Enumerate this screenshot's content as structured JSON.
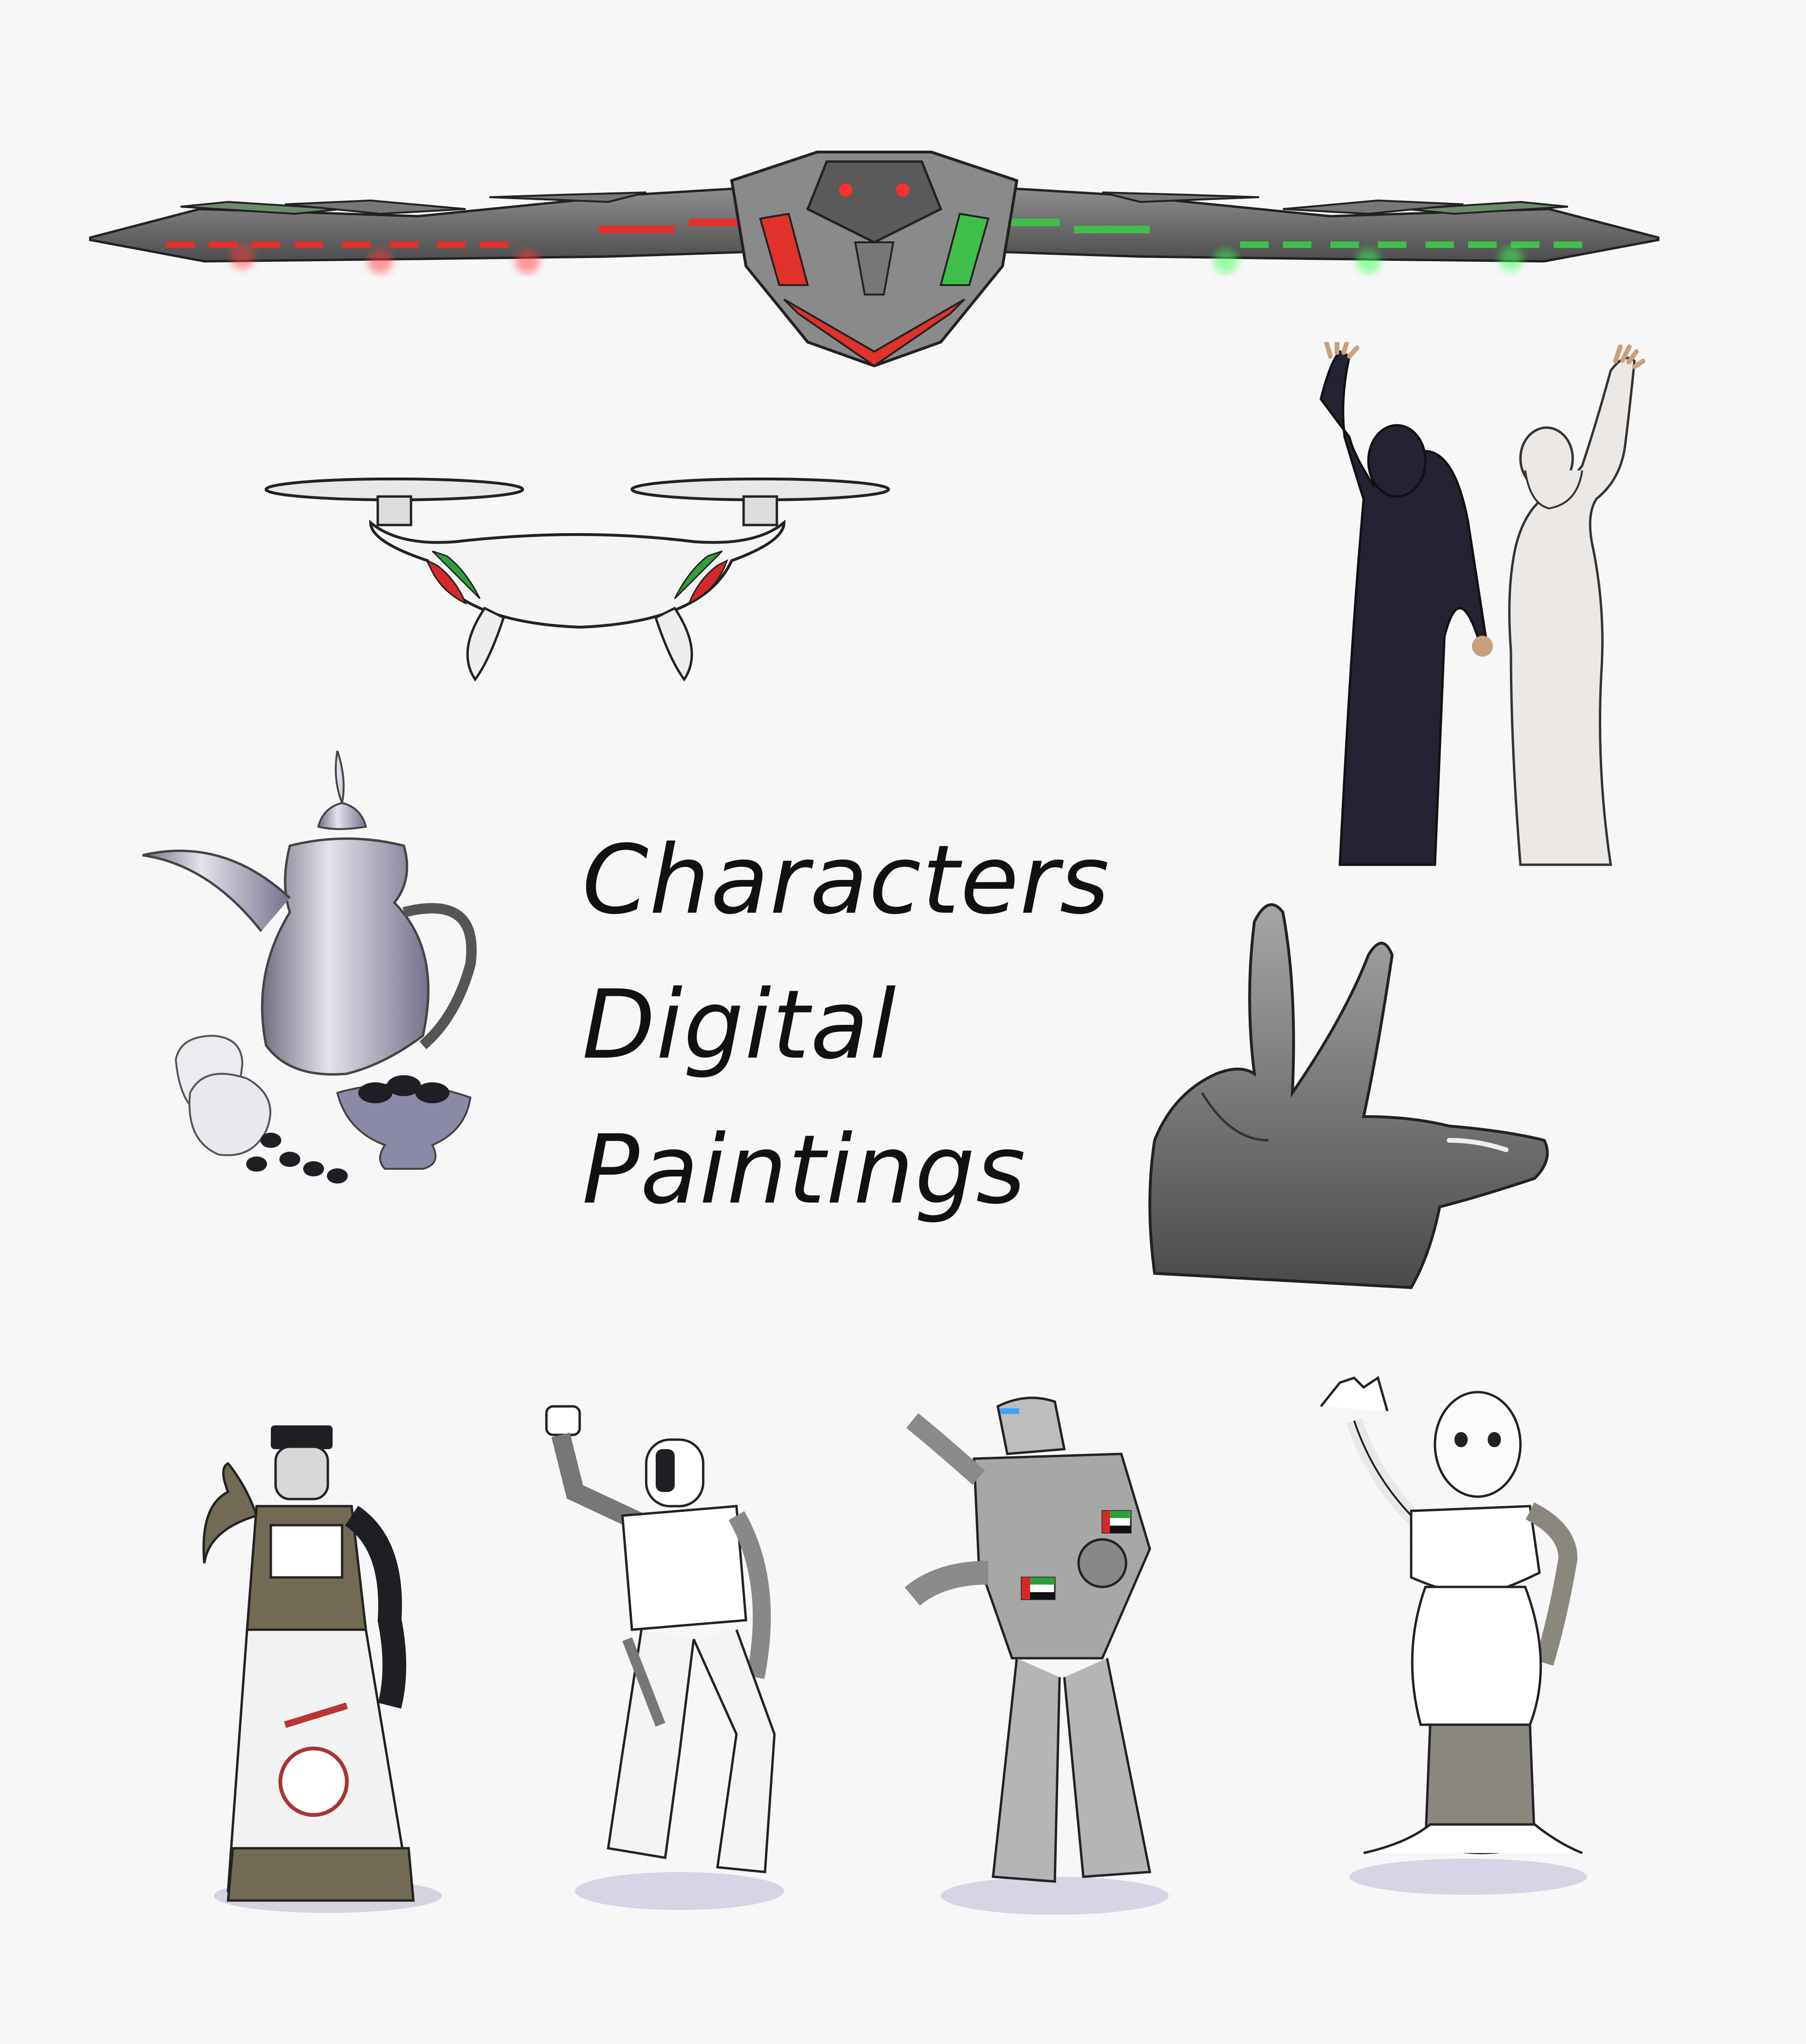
{
  "title": {
    "line1": "Characters",
    "line2": "Digital",
    "line3": "Paintings"
  },
  "colors": {
    "background": "#f7f7f7",
    "uae_red": "#d62828",
    "uae_green": "#2e9e3c",
    "metal": "#9a9a9a",
    "abaya": "#232334",
    "kandura": "#ebe8e6"
  },
  "illustrations": [
    {
      "name": "winged-drone-with-uae-flag-lights-icon"
    },
    {
      "name": "quadcopter-drone-icon"
    },
    {
      "name": "couple-waving-hands-icon"
    },
    {
      "name": "arabic-coffee-pot-dallah-icon"
    },
    {
      "name": "victory-hand-gesture-icon"
    },
    {
      "name": "police-robot-icon"
    },
    {
      "name": "humanoid-robot-icon"
    },
    {
      "name": "armored-robot-icon"
    },
    {
      "name": "pepper-robot-icon"
    }
  ]
}
